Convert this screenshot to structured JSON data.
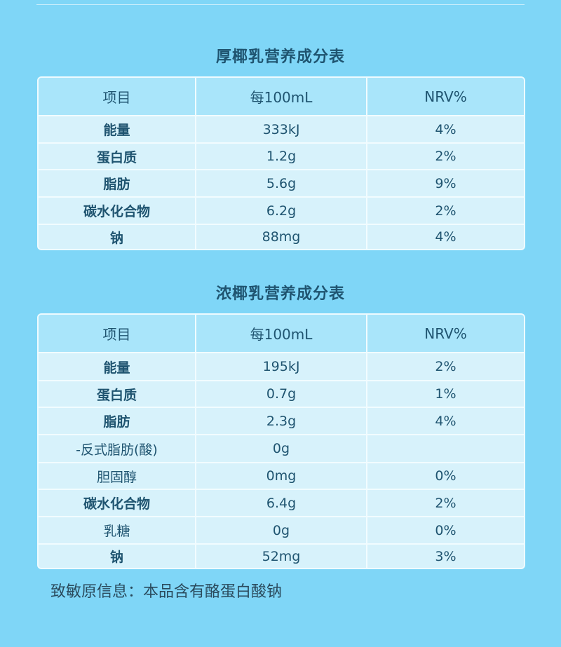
{
  "table1": {
    "title": "厚椰乳营养成分表",
    "header": {
      "item": "项目",
      "per": "每100mL",
      "nrv": "NRV%"
    },
    "rows": [
      {
        "item": "能量",
        "per": "333kJ",
        "nrv": "4%"
      },
      {
        "item": "蛋白质",
        "per": "1.2g",
        "nrv": "2%"
      },
      {
        "item": "脂肪",
        "per": "5.6g",
        "nrv": "9%"
      },
      {
        "item": "碳水化合物",
        "per": "6.2g",
        "nrv": "2%"
      },
      {
        "item": "钠",
        "per": "88mg",
        "nrv": "4%"
      }
    ]
  },
  "table2": {
    "title": "浓椰乳营养成分表",
    "header": {
      "item": "项目",
      "per": "每100mL",
      "nrv": "NRV%"
    },
    "rows": [
      {
        "item": "能量",
        "per": "195kJ",
        "nrv": "2%"
      },
      {
        "item": "蛋白质",
        "per": "0.7g",
        "nrv": "1%"
      },
      {
        "item": "脂肪",
        "per": "2.3g",
        "nrv": "4%"
      },
      {
        "item": "-反式脂肪(酸)",
        "per": "0g",
        "nrv": ""
      },
      {
        "item": "胆固醇",
        "per": "0mg",
        "nrv": "0%"
      },
      {
        "item": "碳水化合物",
        "per": "6.4g",
        "nrv": "2%"
      },
      {
        "item": "乳糖",
        "per": "0g",
        "nrv": "0%"
      },
      {
        "item": "钠",
        "per": "52mg",
        "nrv": "3%"
      }
    ]
  },
  "allergen": "致敏原信息：本品含有酪蛋白酸钠",
  "colors": {
    "background": "#7fd6f7",
    "header_row": "#a9e5fa",
    "body_row": "#d7f2fb",
    "text": "#1f5470"
  }
}
